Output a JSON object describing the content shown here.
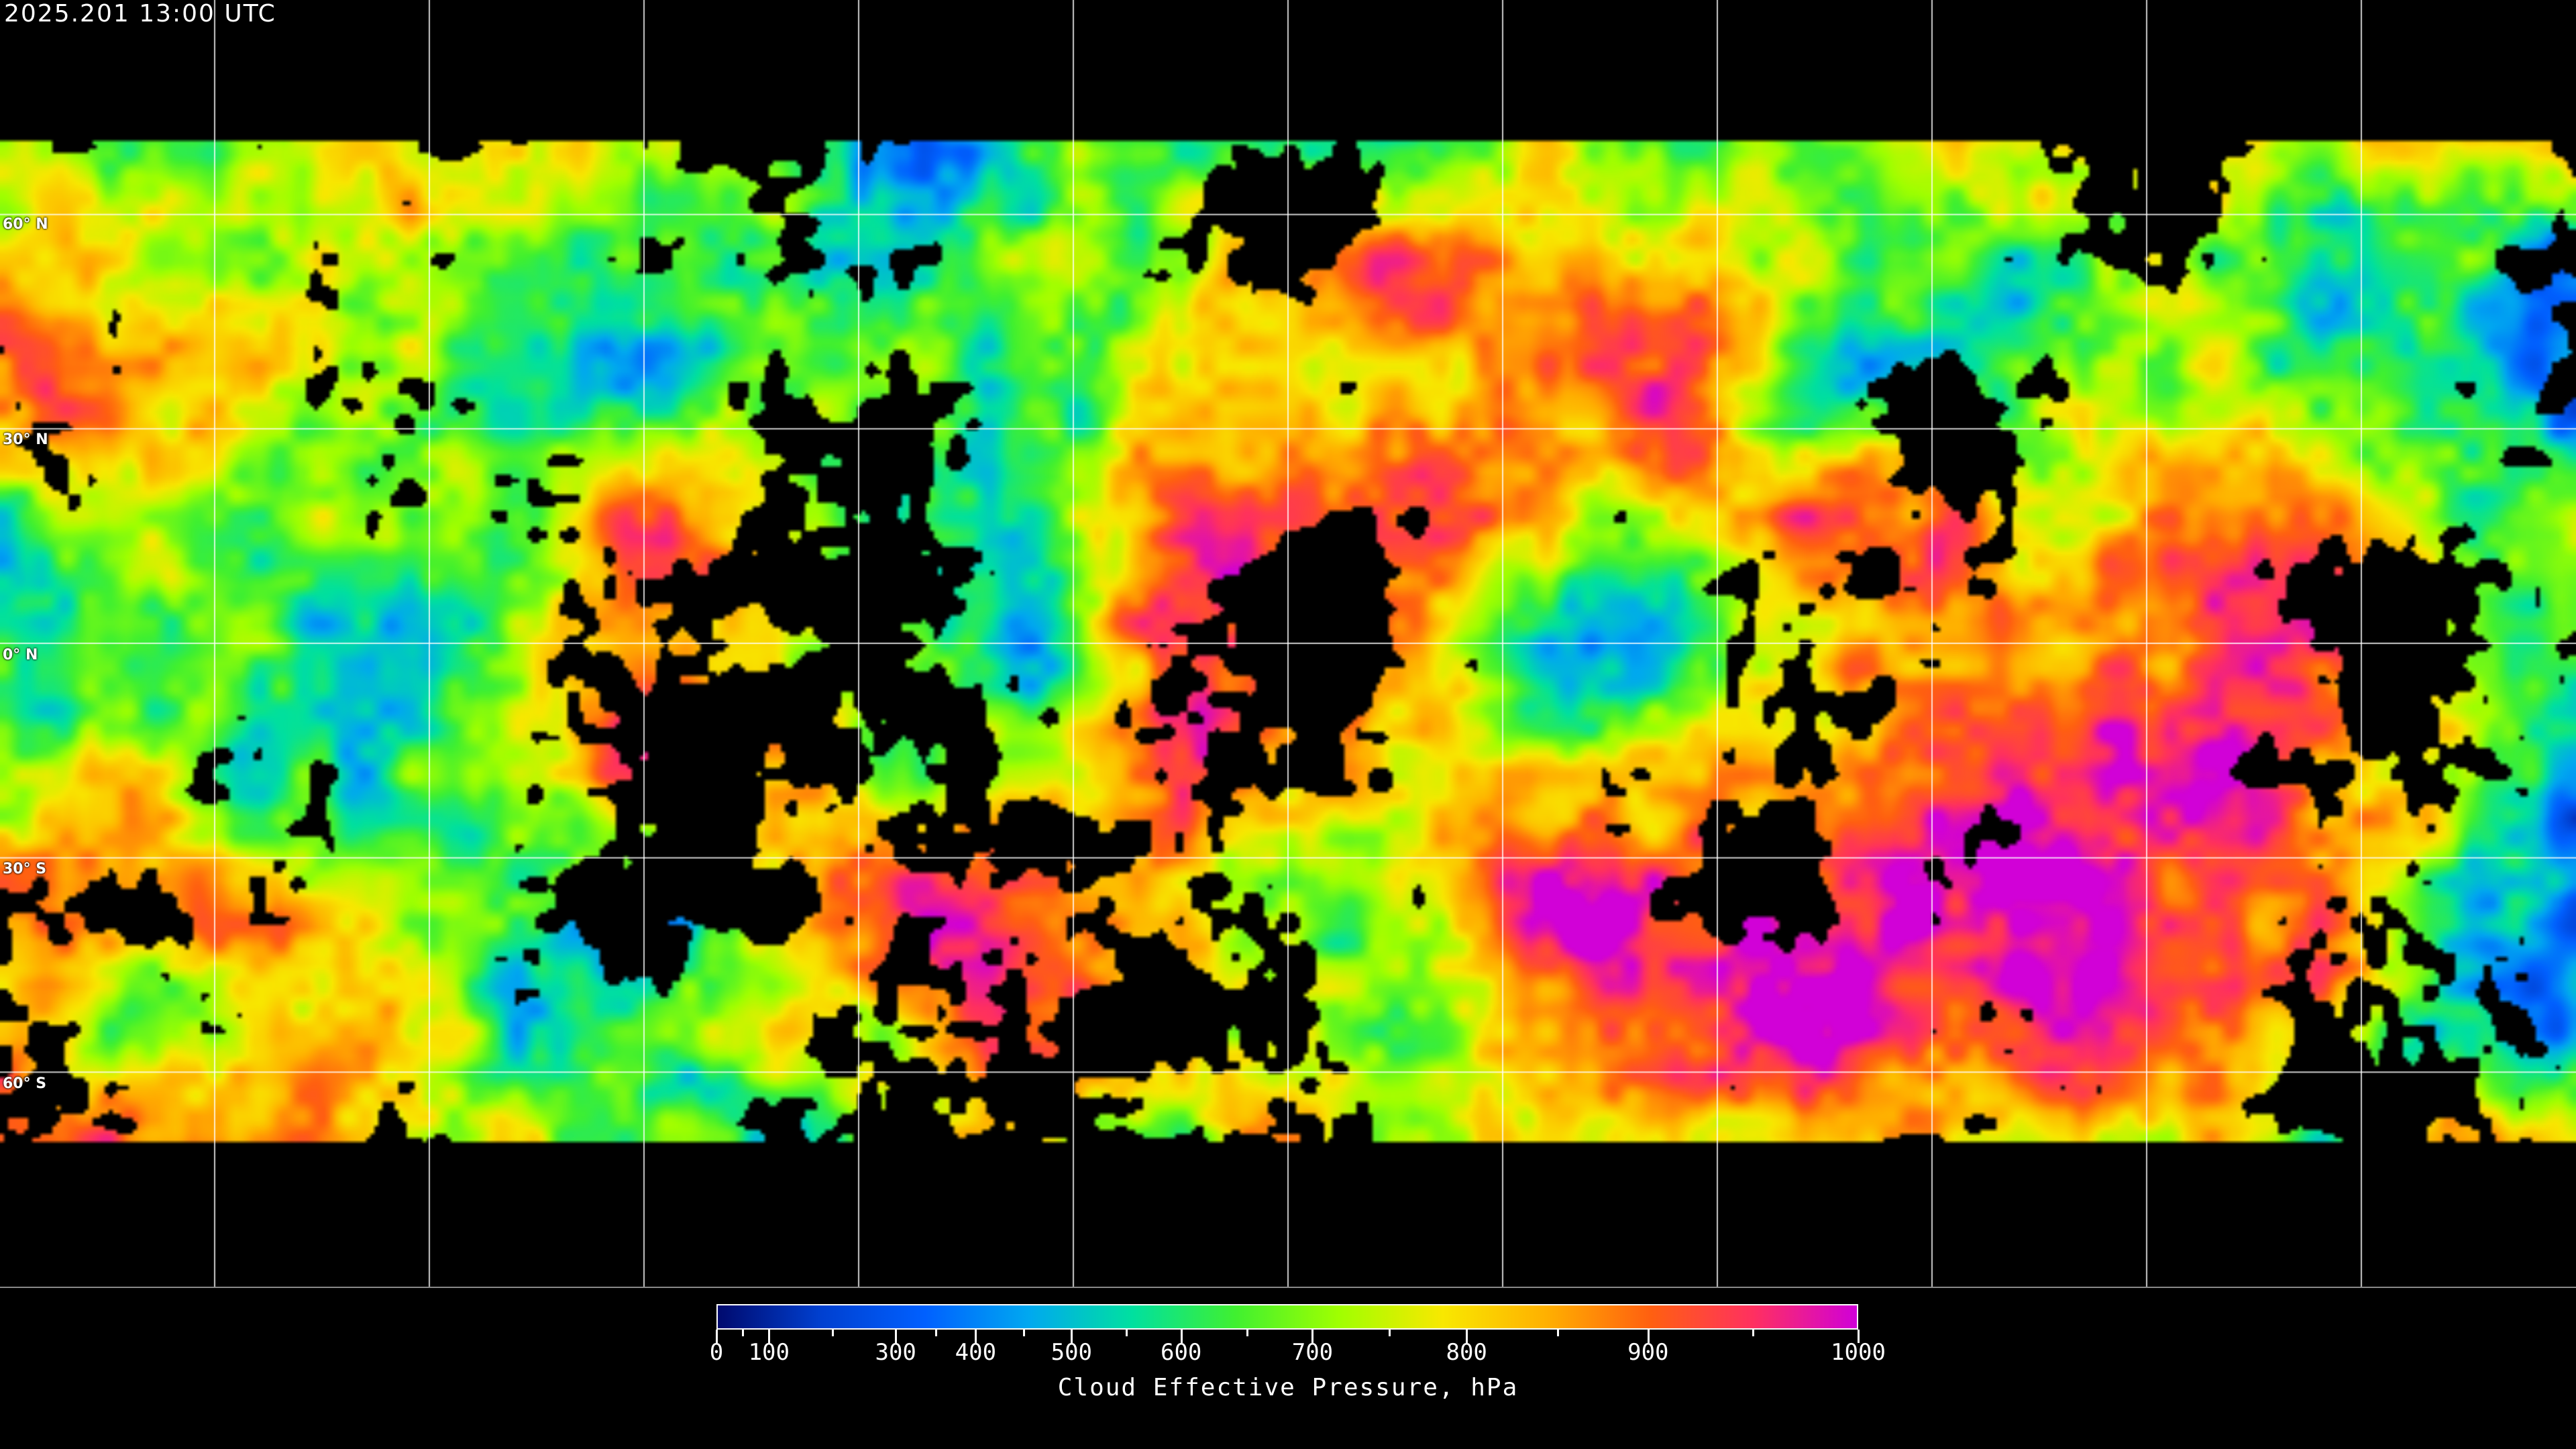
{
  "timestamp": "2025.201 13:00 UTC",
  "map": {
    "projection": "equirectangular",
    "gridlines_lon_step_deg": 30,
    "gridlines_lat_step_deg": 30,
    "lat_labels": [
      "60° N",
      "30° N",
      "0° N",
      "30° S",
      "60° S"
    ],
    "lat_values": [
      60,
      30,
      0,
      -30,
      -60
    ],
    "no_data_color": "#000000",
    "grid_color": "#ffffff"
  },
  "colorbar": {
    "title": "Cloud Effective Pressure, hPa",
    "min": 0,
    "max": 1000,
    "tick_labels": [
      "0",
      "100",
      "300",
      "400",
      "500",
      "600",
      "700",
      "800",
      "900",
      "1000"
    ],
    "tick_values": [
      0,
      100,
      300,
      400,
      500,
      600,
      700,
      800,
      900,
      1000
    ],
    "tick_fractions": [
      0,
      0.046,
      0.157,
      0.227,
      0.311,
      0.407,
      0.522,
      0.657,
      0.816,
      1.0
    ],
    "colors": [
      "#000a6e",
      "#0040d0",
      "#0060ff",
      "#00a8f0",
      "#00e0a0",
      "#40f030",
      "#a0ff00",
      "#f8e800",
      "#ffb000",
      "#ff6010",
      "#ff3060",
      "#d000d8"
    ]
  }
}
